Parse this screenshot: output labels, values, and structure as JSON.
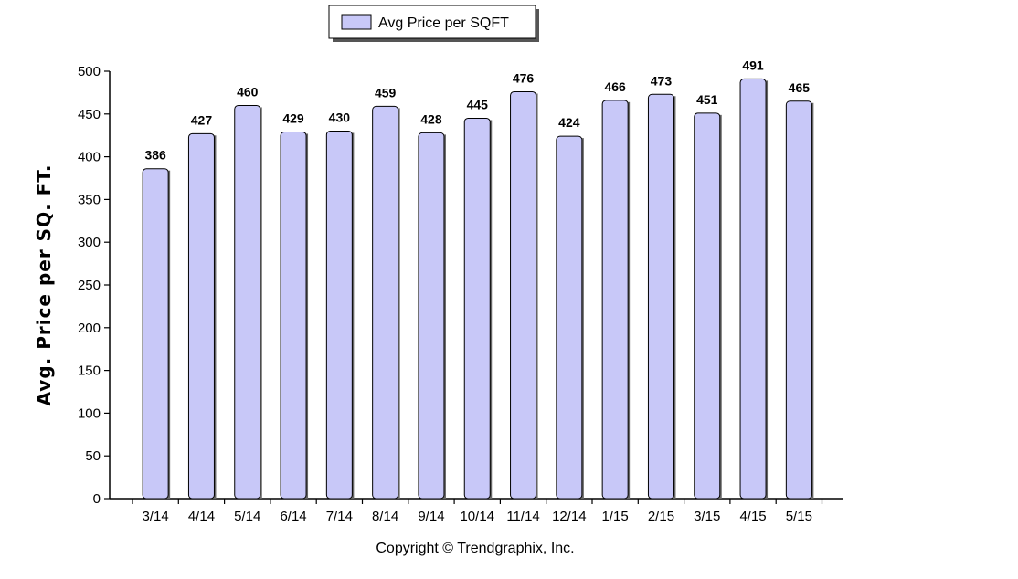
{
  "chart_data": {
    "type": "bar",
    "categories": [
      "3/14",
      "4/14",
      "5/14",
      "6/14",
      "7/14",
      "8/14",
      "9/14",
      "10/14",
      "11/14",
      "12/14",
      "1/15",
      "2/15",
      "3/15",
      "4/15",
      "5/15"
    ],
    "series": [
      {
        "name": "Avg Price per SQFT",
        "values": [
          386,
          427,
          460,
          429,
          430,
          459,
          428,
          445,
          476,
          424,
          466,
          473,
          451,
          491,
          465
        ]
      }
    ],
    "ylabel": "Avg. Price per SQ. FT.",
    "xlabel": "",
    "ylim": [
      0,
      500
    ],
    "yticks": [
      0,
      50,
      100,
      150,
      200,
      250,
      300,
      350,
      400,
      450,
      500
    ],
    "grid": false,
    "legend": "top-center",
    "bar_color": "#c8c8f8",
    "bar_edge_color": "#000000",
    "data_labels": true
  },
  "footer": {
    "copyright": "Copyright © Trendgraphix, Inc."
  }
}
